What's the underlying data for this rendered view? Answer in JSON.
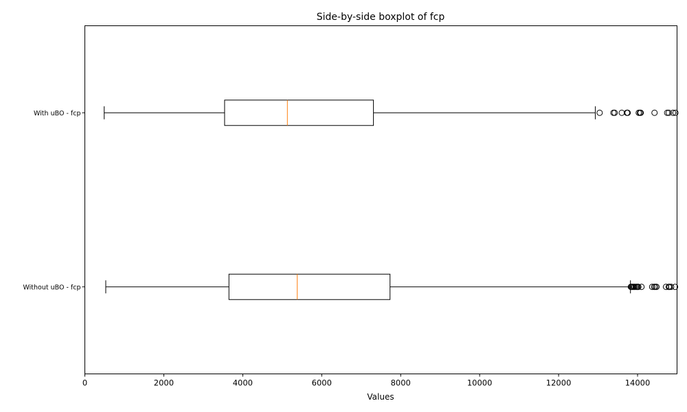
{
  "chart_data": {
    "type": "boxplot",
    "orientation": "horizontal",
    "title": "Side-by-side boxplot of fcp",
    "xlabel": "Values",
    "ylabel": "",
    "xlim": [
      0,
      15000
    ],
    "xticks": [
      0,
      2000,
      4000,
      6000,
      8000,
      10000,
      12000,
      14000
    ],
    "grid": false,
    "series": [
      {
        "name": "Without uBO - fcp",
        "whisker_low": 530,
        "q1": 3650,
        "median": 5380,
        "q3": 7730,
        "whisker_high": 13820,
        "outliers": [
          13830,
          13850,
          13870,
          13900,
          13920,
          13950,
          13980,
          14000,
          14020,
          14100,
          14370,
          14420,
          14450,
          14480,
          14720,
          14790,
          14810,
          14850,
          14950
        ]
      },
      {
        "name": "With uBO - fcp",
        "whisker_low": 490,
        "q1": 3540,
        "median": 5130,
        "q3": 7310,
        "whisker_high": 12930,
        "outliers": [
          13040,
          13390,
          13420,
          13600,
          13730,
          13750,
          14030,
          14060,
          14080,
          14430,
          14750,
          14790,
          14900,
          14960
        ]
      }
    ],
    "colors": {
      "box": "#000000",
      "median": "#ff7f0e",
      "axes": "#000000",
      "background": "#ffffff"
    }
  }
}
